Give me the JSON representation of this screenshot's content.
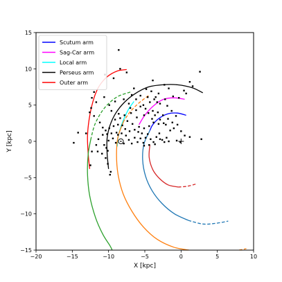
{
  "chart_data": {
    "type": "line",
    "xlabel": "X [kpc]",
    "ylabel": "Y [kpc]",
    "xlim": [
      -20,
      10
    ],
    "ylim": [
      -15,
      15
    ],
    "xticks": [
      -20,
      -15,
      -10,
      -5,
      0,
      5,
      10
    ],
    "yticks": [
      -15,
      -10,
      -5,
      0,
      5,
      10,
      15
    ],
    "grid": false,
    "legend_position": "top-left",
    "legend": [
      {
        "label": "Scutum arm",
        "color": "#0000ff"
      },
      {
        "label": "Sag-Car arm",
        "color": "#ff00ff"
      },
      {
        "label": "Local arm",
        "color": "#00ffff"
      },
      {
        "label": "Perseus arm",
        "color": "#000000"
      },
      {
        "label": "Outer arm",
        "color": "#ff0000"
      }
    ],
    "galactic_center": [
      0,
      0
    ],
    "sun": [
      -8.3,
      0
    ],
    "curves": [
      {
        "series": "Scutum arm",
        "color": "#0000ff",
        "style": "solid",
        "points": [
          [
            0.7,
            3.6
          ],
          [
            -0.5,
            3.9
          ],
          [
            -1.8,
            3.8
          ],
          [
            -3,
            3.2
          ],
          [
            -3.9,
            2.3
          ],
          [
            -4.3,
            1.5
          ]
        ]
      },
      {
        "series": "Scutum arm (modelled)",
        "color": "#1f77b4",
        "style": "solid",
        "points": [
          [
            -4.3,
            1.5
          ],
          [
            -5.1,
            -0.3
          ],
          [
            -5.3,
            -2.5
          ],
          [
            -4.9,
            -4.8
          ],
          [
            -4,
            -6.8
          ],
          [
            -2.6,
            -8.6
          ],
          [
            -0.9,
            -10
          ],
          [
            1,
            -10.9
          ]
        ]
      },
      {
        "series": "Scutum arm (modelled)",
        "color": "#1f77b4",
        "style": "dashed",
        "points": [
          [
            1,
            -10.9
          ],
          [
            3,
            -11.4
          ],
          [
            4.8,
            -11.3
          ],
          [
            6.5,
            -11
          ]
        ]
      },
      {
        "series": "Sag-Car arm",
        "color": "#ff00ff",
        "style": "solid",
        "points": [
          [
            0.5,
            5.8
          ],
          [
            -0.9,
            6
          ],
          [
            -2.4,
            5.8
          ],
          [
            -3.8,
            4.9
          ],
          [
            -5,
            3.6
          ],
          [
            -5.8,
            2.3
          ]
        ]
      },
      {
        "series": "Sag-Car arm (modelled)",
        "color": "#d62728",
        "style": "solid",
        "points": [
          [
            -4.3,
            -0.5
          ],
          [
            -4.4,
            -2.2
          ],
          [
            -3.9,
            -3.9
          ],
          [
            -3,
            -5.1
          ],
          [
            -1.8,
            -6
          ],
          [
            -0.4,
            -6.3
          ]
        ]
      },
      {
        "series": "Sag-Car arm (modelled)",
        "color": "#d62728",
        "style": "dashed",
        "points": [
          [
            -0.4,
            -6.3
          ],
          [
            0.8,
            -6.2
          ],
          [
            2,
            -5.9
          ]
        ]
      },
      {
        "series": "Local arm",
        "color": "#00ffff",
        "style": "solid",
        "points": [
          [
            -6.5,
            5.5
          ],
          [
            -7.2,
            4.5
          ],
          [
            -7.8,
            3.3
          ],
          [
            -8.3,
            2
          ],
          [
            -8.7,
            0.5
          ],
          [
            -8.8,
            -0.7
          ]
        ]
      },
      {
        "series": "Perseus arm",
        "color": "#000000",
        "style": "solid",
        "points": [
          [
            3,
            6.7
          ],
          [
            1.5,
            7.4
          ],
          [
            -0.5,
            7.8
          ],
          [
            -2.5,
            7.8
          ],
          [
            -4.5,
            7.5
          ],
          [
            -6.3,
            6.6
          ],
          [
            -7.8,
            5.4
          ],
          [
            -9,
            3.9
          ],
          [
            -9.8,
            2.2
          ],
          [
            -10.2,
            0.4
          ],
          [
            -10.2,
            -1.6
          ],
          [
            -10,
            -3.8
          ]
        ]
      },
      {
        "series": "Perseus arm (modelled)",
        "color": "#ff7f0e",
        "style": "dashed",
        "points": [
          [
            -4.5,
            6.3
          ],
          [
            -5.8,
            5.3
          ],
          [
            -7,
            4.1
          ],
          [
            -7.9,
            2.8
          ]
        ]
      },
      {
        "series": "Perseus arm (modelled)",
        "color": "#ff7f0e",
        "style": "solid",
        "points": [
          [
            -7.9,
            2.8
          ],
          [
            -8.7,
            0.6
          ],
          [
            -8.9,
            -1.8
          ],
          [
            -8.7,
            -4.5
          ],
          [
            -8,
            -7.2
          ],
          [
            -6.8,
            -9.6
          ],
          [
            -5.2,
            -11.8
          ],
          [
            -3.3,
            -13.5
          ],
          [
            -1,
            -14.6
          ],
          [
            1.1,
            -15
          ]
        ]
      },
      {
        "series": "Perseus arm (modelled)",
        "color": "#ff7f0e",
        "style": "dashed",
        "points": [
          [
            8,
            -15
          ],
          [
            9,
            -14.8
          ]
        ]
      },
      {
        "series": "Outer arm",
        "color": "#ff0000",
        "style": "solid",
        "points": [
          [
            -7.5,
            9.9
          ],
          [
            -8.8,
            9.7
          ],
          [
            -10.2,
            8.9
          ],
          [
            -11.3,
            7.6
          ],
          [
            -12,
            6
          ],
          [
            -12.6,
            3.5
          ],
          [
            -12.9,
            0.8
          ],
          [
            -12.8,
            -1.8
          ],
          [
            -12.6,
            -3.8
          ]
        ]
      },
      {
        "series": "Outer arm (modelled)",
        "color": "#2ca02c",
        "style": "dashed",
        "points": [
          [
            -7,
            6.8
          ],
          [
            -8.7,
            6.2
          ],
          [
            -10,
            5.2
          ],
          [
            -11,
            4
          ],
          [
            -11.9,
            2.3
          ],
          [
            -12.4,
            0.5
          ]
        ]
      },
      {
        "series": "Outer arm (modelled)",
        "color": "#2ca02c",
        "style": "solid",
        "points": [
          [
            -12.4,
            0.5
          ],
          [
            -12.8,
            -1.7
          ],
          [
            -12.9,
            -4.5
          ],
          [
            -12.6,
            -7.5
          ],
          [
            -11.8,
            -10.5
          ],
          [
            -10.8,
            -12.8
          ],
          [
            -9.8,
            -14.4
          ],
          [
            -9.5,
            -15
          ]
        ]
      }
    ],
    "sources": [
      [
        -8.6,
        12.6
      ],
      [
        -12.3,
        6
      ],
      [
        -10.5,
        9.2
      ],
      [
        -14.2,
        1.2
      ],
      [
        -12,
        6.8
      ],
      [
        -8.4,
        10
      ],
      [
        -7.5,
        9.5
      ],
      [
        -6.5,
        7.3
      ],
      [
        -4.8,
        7.2
      ],
      [
        -5.2,
        5
      ],
      [
        -3.1,
        6.6
      ],
      [
        -2.2,
        5.8
      ],
      [
        -1.1,
        6.2
      ],
      [
        -0.3,
        6
      ],
      [
        0.7,
        6.6
      ],
      [
        1.6,
        7.6
      ],
      [
        1.2,
        8.2
      ],
      [
        2.6,
        9.6
      ],
      [
        0.4,
        7
      ],
      [
        -1.7,
        7.3
      ],
      [
        -3.5,
        6.1
      ],
      [
        -4.1,
        6.9
      ],
      [
        -2.9,
        5.2
      ],
      [
        -1.9,
        4.9
      ],
      [
        -3.7,
        5.8
      ],
      [
        -4.3,
        5.4
      ],
      [
        -4.6,
        6.1
      ],
      [
        -5.6,
        6.3
      ],
      [
        -6.2,
        5.8
      ],
      [
        -6.8,
        6.4
      ],
      [
        -7.2,
        5.2
      ],
      [
        -7.9,
        5.8
      ],
      [
        -9.1,
        5.5
      ],
      [
        -9.9,
        5
      ],
      [
        -10.6,
        6.1
      ],
      [
        -12.4,
        4.6
      ],
      [
        -12.6,
        4
      ],
      [
        -9.6,
        4.2
      ],
      [
        -8.6,
        3.8
      ],
      [
        -7.8,
        3.6
      ],
      [
        -6.9,
        3.9
      ],
      [
        -6.1,
        3.3
      ],
      [
        -5.1,
        3.6
      ],
      [
        -4.5,
        3.9
      ],
      [
        -3.9,
        4.2
      ],
      [
        -3.2,
        4
      ],
      [
        -2.5,
        3.6
      ],
      [
        -1.8,
        3.1
      ],
      [
        -2.4,
        2.5
      ],
      [
        -3.1,
        2.4
      ],
      [
        -3.8,
        2.6
      ],
      [
        -4.4,
        2.1
      ],
      [
        -5.1,
        1.8
      ],
      [
        -5.8,
        2
      ],
      [
        -6.4,
        1.6
      ],
      [
        -7.1,
        1.4
      ],
      [
        -7.7,
        1.7
      ],
      [
        -8.1,
        2.2
      ],
      [
        -8.7,
        2.3
      ],
      [
        -9.3,
        2.1
      ],
      [
        -9.9,
        1.8
      ],
      [
        -10.4,
        1.5
      ],
      [
        -10.8,
        0.9
      ],
      [
        -11.4,
        0.3
      ],
      [
        -11.7,
        -0.5
      ],
      [
        -11.5,
        -1.4
      ],
      [
        -10.9,
        -1.7
      ],
      [
        -10.4,
        -2.3
      ],
      [
        -10.1,
        -3.1
      ],
      [
        -9.7,
        -4.2
      ],
      [
        -12.5,
        -3.3
      ],
      [
        -10.6,
        -0.5
      ],
      [
        -10,
        0.1
      ],
      [
        -9.4,
        0.4
      ],
      [
        -9,
        -0.2
      ],
      [
        -8.7,
        0.9
      ],
      [
        -8.2,
        1.1
      ],
      [
        -7.6,
        0.8
      ],
      [
        -7.2,
        0.2
      ],
      [
        -6.8,
        -0.3
      ],
      [
        -6.4,
        0.5
      ],
      [
        -6,
        -0.1
      ],
      [
        -5.6,
        0.4
      ],
      [
        -5.2,
        -0.2
      ],
      [
        -4.9,
        0.5
      ],
      [
        -4.6,
        1
      ],
      [
        -4.2,
        0.3
      ],
      [
        -3.8,
        -0.1
      ],
      [
        -3.4,
        0.6
      ],
      [
        -3,
        1.1
      ],
      [
        -2.6,
        0.2
      ],
      [
        -2.3,
        -0.1
      ],
      [
        -2,
        0.5
      ],
      [
        -1.5,
        1.5
      ],
      [
        -1,
        1.8
      ],
      [
        -0.5,
        2.3
      ],
      [
        0,
        1.4
      ],
      [
        0.5,
        0.8
      ],
      [
        1.2,
        0.6
      ],
      [
        2.8,
        0.3
      ],
      [
        -0.1,
        -0.1
      ],
      [
        -0.6,
        0.1
      ],
      [
        -5.9,
        1.3
      ],
      [
        -5.4,
        1.1
      ],
      [
        -6.7,
        2.4
      ],
      [
        -7.4,
        2.8
      ],
      [
        -8.4,
        3.2
      ],
      [
        -9.1,
        3
      ],
      [
        -8.9,
        1.2
      ],
      [
        -9.6,
        1.1
      ],
      [
        -10.2,
        1
      ],
      [
        -10.8,
        1.9
      ],
      [
        -11.2,
        2.6
      ],
      [
        -4,
        3.1
      ],
      [
        -3.6,
        3.6
      ],
      [
        -2.9,
        3
      ],
      [
        -2.1,
        2.3
      ],
      [
        -1.2,
        2.6
      ],
      [
        -0.7,
        3.5
      ],
      [
        -1.3,
        4.2
      ],
      [
        -3.3,
        5.4
      ],
      [
        -4.9,
        4.5
      ],
      [
        -5.6,
        4.8
      ],
      [
        -6.2,
        4.3
      ],
      [
        -7,
        4.6
      ],
      [
        -10.3,
        -0.9
      ],
      [
        -10.1,
        -1.3
      ],
      [
        -5.1,
        -0.6
      ],
      [
        -4.4,
        -0.5
      ],
      [
        -3.6,
        -0.4
      ],
      [
        -7.9,
        -0.3
      ],
      [
        -2.9,
        0.3
      ],
      [
        -1.7,
        0
      ],
      [
        -13.1,
        1.1
      ],
      [
        -14.8,
        -0.2
      ],
      [
        -12.3,
        -1.4
      ],
      [
        -9.8,
        -4.6
      ],
      [
        -12,
        3.5
      ],
      [
        -11.7,
        5.4
      ],
      [
        -9.3,
        8.7
      ],
      [
        -2.3,
        7.8
      ],
      [
        -3.9,
        8.4
      ]
    ]
  }
}
